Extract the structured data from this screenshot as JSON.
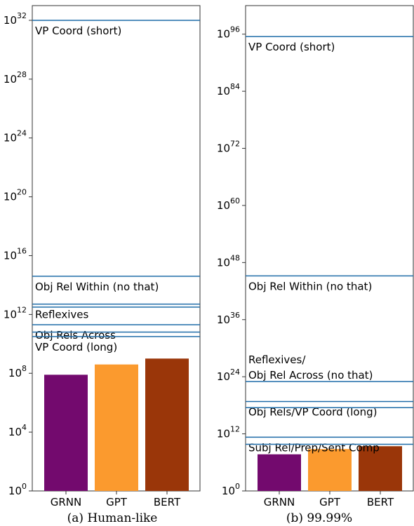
{
  "chart_data": [
    {
      "type": "bar",
      "caption": "(a)  Human-like",
      "y_scale": "log10",
      "ylim_exp": [
        0,
        33
      ],
      "ytick_exps": [
        0,
        4,
        8,
        12,
        16,
        20,
        24,
        28,
        32
      ],
      "categories": [
        "GRNN",
        "GPT",
        "BERT"
      ],
      "values_exp": [
        7.9,
        8.6,
        9.0
      ],
      "colors": [
        "#730a6e",
        "#fb9a2e",
        "#9a3609"
      ],
      "line_color": "#1f6ca8",
      "hlines": [
        {
          "label": "VP Coord (short)",
          "exp": 32.0
        },
        {
          "label": "Obj Rel Within (no that)",
          "exp": 14.6
        },
        {
          "label": "Reflexives",
          "exp": 12.7
        },
        {
          "label": "",
          "exp": 12.5
        },
        {
          "label": "Obj Rels Across",
          "exp": 11.3
        },
        {
          "label": "",
          "exp": 10.8
        },
        {
          "label": "VP Coord (long)",
          "exp": 10.5
        }
      ]
    },
    {
      "type": "bar",
      "caption": "(b)  99.99%",
      "y_scale": "log10",
      "ylim_exp": [
        0,
        102
      ],
      "ytick_exps": [
        0,
        12,
        24,
        36,
        48,
        60,
        72,
        84,
        96
      ],
      "categories": [
        "GRNN",
        "GPT",
        "BERT"
      ],
      "values_exp": [
        7.7,
        8.8,
        9.4
      ],
      "colors": [
        "#730a6e",
        "#fb9a2e",
        "#9a3609"
      ],
      "line_color": "#1f6ca8",
      "hlines": [
        {
          "label": "VP Coord (short)",
          "exp": 95.5
        },
        {
          "label": "Obj Rel Within (no that)",
          "exp": 45.2
        },
        {
          "label": "Reflexives/\nObj Rel Across (no that)",
          "exp": 23.0
        },
        {
          "label": "Obj Rels/VP Coord (long)",
          "exp": 18.8
        },
        {
          "label": "",
          "exp": 17.5
        },
        {
          "label": "Subj Rel/Prep/Sent Comp",
          "exp": 11.3
        },
        {
          "label": "",
          "exp": 9.8
        }
      ]
    }
  ]
}
